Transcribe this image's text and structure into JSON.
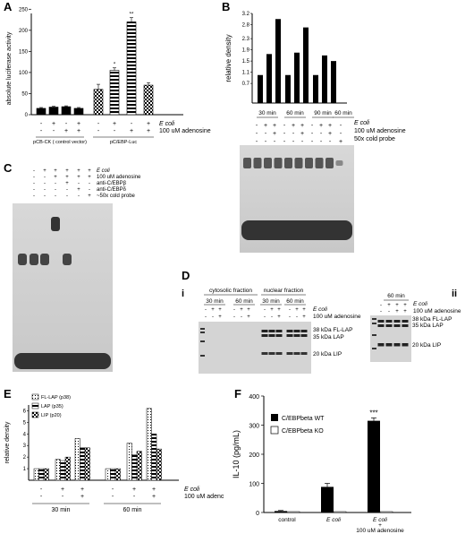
{
  "chart_data": [
    {
      "panel": "A",
      "type": "bar",
      "ylabel": "absolute luciferase activity",
      "ylim": [
        0,
        240
      ],
      "groups": [
        "pCB-CK ( control vector)",
        "pC/EBP-Luc"
      ],
      "treatment_rows": [
        {
          "label": "E coli",
          "signs": [
            "-",
            "+",
            "-",
            "+",
            "-",
            "+",
            "-",
            "+"
          ]
        },
        {
          "label": "100 uM adenosine",
          "signs": [
            "-",
            "-",
            "+",
            "+",
            "-",
            "-",
            "+",
            "+"
          ]
        }
      ],
      "values": [
        15,
        18,
        19,
        15,
        60,
        105,
        220,
        70
      ],
      "errors": [
        2,
        2,
        2,
        2,
        12,
        6,
        10,
        6
      ],
      "annotations": [
        "",
        "",
        "",
        "",
        "",
        "*",
        "**",
        ""
      ]
    },
    {
      "panel": "B",
      "type": "bar",
      "ylabel": "relative density",
      "ylim": [
        0,
        3.2
      ],
      "yticks": [
        "0.7",
        "1.1",
        "1.5",
        "1.9",
        "2.3",
        "2.8",
        "3.2"
      ],
      "group_labels": [
        "30 min",
        "60 min",
        "90 min",
        "60 min"
      ],
      "values": [
        1.0,
        1.75,
        3.0,
        1.0,
        1.8,
        2.7,
        1.0,
        1.7,
        1.5
      ],
      "treatment_rows": [
        {
          "label": "E coli",
          "signs": [
            "-",
            "+",
            "+",
            "-",
            "+",
            "+",
            "-",
            "+",
            "+",
            "-"
          ]
        },
        {
          "label": "100 uM adenosine",
          "signs": [
            "-",
            "-",
            "+",
            "-",
            "-",
            "+",
            "-",
            "-",
            "+",
            "-"
          ]
        },
        {
          "label": "50x cold probe",
          "signs": [
            "-",
            "-",
            "-",
            "-",
            "-",
            "-",
            "-",
            "-",
            "-",
            "+"
          ]
        }
      ]
    },
    {
      "panel": "E",
      "type": "bar",
      "ylabel": "relative density",
      "ylim": [
        0,
        6.5
      ],
      "yticks": [
        "1",
        "2",
        "3",
        "4",
        "5",
        "6"
      ],
      "legend": [
        "FL-LAP (p38)",
        "LAP (p35)",
        "LIP (p20)"
      ],
      "group_labels": [
        "30 min",
        "60 min"
      ],
      "series": [
        {
          "name": "FL-LAP (p38)",
          "values": [
            1.0,
            1.8,
            3.6,
            1.0,
            3.2,
            6.2
          ]
        },
        {
          "name": "LAP (p35)",
          "values": [
            1.0,
            1.7,
            2.8,
            1.0,
            2.2,
            4.0
          ]
        },
        {
          "name": "LIP (p20)",
          "values": [
            1.0,
            2.0,
            2.8,
            1.0,
            2.5,
            2.7
          ]
        }
      ],
      "treatment_rows": [
        {
          "label": "E coli",
          "signs": [
            "-",
            "+",
            "+",
            "-",
            "+",
            "+"
          ]
        },
        {
          "label": "100 uM adenosine",
          "signs": [
            "-",
            "-",
            "+",
            "-",
            "-",
            "+"
          ]
        }
      ]
    },
    {
      "panel": "F",
      "type": "bar",
      "ylabel": "IL-10 (pg/mL)",
      "ylim": [
        0,
        400
      ],
      "yticks": [
        "0",
        "100",
        "200",
        "300",
        "400"
      ],
      "legend": [
        "C/EBPbeta WT",
        "C/EBPbeta KO"
      ],
      "categories": [
        "control",
        "E coli",
        "E coli\n+\n100 uM adenosine"
      ],
      "series": [
        {
          "name": "C/EBPbeta WT",
          "values": [
            5,
            88,
            315
          ],
          "errors": [
            2,
            12,
            10
          ]
        },
        {
          "name": "C/EBPbeta KO",
          "values": [
            0,
            0,
            0
          ],
          "errors": [
            0,
            0,
            0
          ]
        }
      ],
      "annotations": [
        "",
        "",
        "***"
      ]
    }
  ],
  "labels": {
    "panels": [
      "A",
      "B",
      "C",
      "D",
      "i",
      "ii",
      "E",
      "F"
    ],
    "a_ecoli": "E coli",
    "a_aden": "100 uM adenosine",
    "a_group1": "pCB-CK ( control vector)",
    "a_group2": "pC/EBP-Luc",
    "a_ytick": [
      "0",
      "50",
      "100",
      "150",
      "200",
      "250"
    ],
    "b_ecoli": "E coli",
    "b_aden": "100 uM adenosine",
    "b_cold": "50x cold probe",
    "c_rows": [
      "E coli",
      "100 uM adenosine",
      "anti-C/EBPβ",
      "anti-C/EBPδ",
      "~50x cold probe"
    ],
    "d_cyto": "cytosolic fraction",
    "d_nuc": "nuclear fraction",
    "d_30": "30 min",
    "d_60": "60 min",
    "d_ecoli": "E coli",
    "d_aden": "100 uM adenosine",
    "d_bands": [
      "38 kDa FL-LAP",
      "35 kDa LAP",
      "20 kDa LIP"
    ],
    "dii_60": "60 min",
    "e_ecoli": "E coli",
    "e_aden": "100 uM adenosine",
    "f_xcats": [
      "control",
      "E coli",
      "E coli",
      "+",
      "100 uM adenosine"
    ]
  }
}
